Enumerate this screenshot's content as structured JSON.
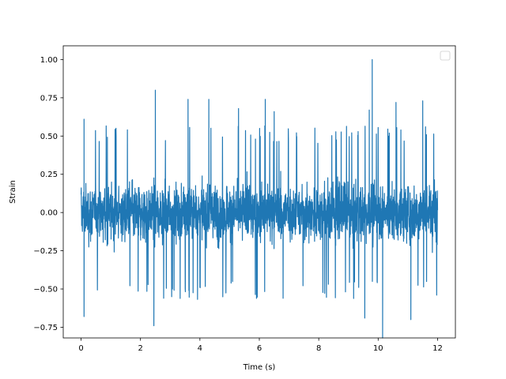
{
  "chart_data": {
    "type": "line",
    "title": "",
    "xlabel": "Time (s)",
    "ylabel": "Strain",
    "xlim": [
      -0.6,
      12.6
    ],
    "ylim": [
      -0.82,
      1.09
    ],
    "x_ticks": [
      0,
      2,
      4,
      6,
      8,
      10,
      12
    ],
    "x_tick_labels": [
      "0",
      "2",
      "4",
      "6",
      "8",
      "10",
      "12"
    ],
    "y_ticks": [
      -0.75,
      -0.5,
      -0.25,
      0.0,
      0.25,
      0.5,
      0.75,
      1.0
    ],
    "y_tick_labels": [
      "−0.75",
      "−0.50",
      "−0.25",
      "0.00",
      "0.25",
      "0.50",
      "0.75",
      "1.00"
    ],
    "grid": false,
    "legend": {
      "placement": "top-right",
      "entries": []
    },
    "series": [
      {
        "color": "#1f77b4",
        "x_range": [
          0,
          12
        ],
        "typical_band": [
          -0.45,
          0.45
        ],
        "notable_points": [
          {
            "x": 0.1,
            "y": 0.61
          },
          {
            "x": 0.1,
            "y": -0.68
          },
          {
            "x": 2.5,
            "y": 0.8
          },
          {
            "x": 2.45,
            "y": -0.74
          },
          {
            "x": 3.6,
            "y": 0.74
          },
          {
            "x": 4.3,
            "y": 0.74
          },
          {
            "x": 5.3,
            "y": 0.68
          },
          {
            "x": 6.2,
            "y": 0.74
          },
          {
            "x": 6.5,
            "y": 0.66
          },
          {
            "x": 9.55,
            "y": -0.69
          },
          {
            "x": 9.8,
            "y": 1.0
          },
          {
            "x": 9.7,
            "y": 0.67
          },
          {
            "x": 10.15,
            "y": -0.82
          },
          {
            "x": 10.6,
            "y": 0.72
          },
          {
            "x": 11.5,
            "y": 0.73
          },
          {
            "x": 11.1,
            "y": -0.7
          }
        ]
      }
    ]
  }
}
